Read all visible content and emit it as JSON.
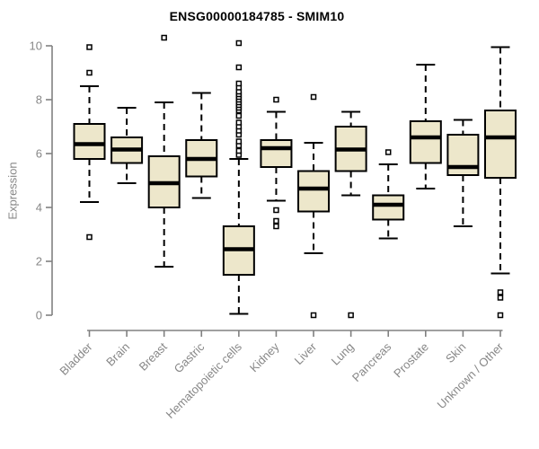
{
  "chart_data": {
    "type": "boxplot",
    "title": "ENSG00000184785 - SMIM10",
    "ylabel": "Expression",
    "xlabel": "",
    "ylim": [
      0,
      10
    ],
    "yticks": [
      0,
      2,
      4,
      6,
      8,
      10
    ],
    "grid": false,
    "legend": "none",
    "categories": [
      "Bladder",
      "Brain",
      "Breast",
      "Gastric",
      "Hematopoietic cells",
      "Kidney",
      "Liver",
      "Lung",
      "Pancreas",
      "Prostate",
      "Skin",
      "Unknown / Other"
    ],
    "series": [
      {
        "name": "Bladder",
        "whislo": 4.2,
        "q1": 5.8,
        "med": 6.35,
        "q3": 7.1,
        "whishi": 8.5,
        "fliers": [
          2.9,
          9.0,
          9.95
        ]
      },
      {
        "name": "Brain",
        "whislo": 4.9,
        "q1": 5.65,
        "med": 6.15,
        "q3": 6.6,
        "whishi": 7.7,
        "fliers": []
      },
      {
        "name": "Breast",
        "whislo": 1.8,
        "q1": 4.0,
        "med": 4.9,
        "q3": 5.9,
        "whishi": 7.9,
        "fliers": [
          10.3
        ]
      },
      {
        "name": "Gastric",
        "whislo": 4.35,
        "q1": 5.15,
        "med": 5.8,
        "q3": 6.5,
        "whishi": 8.25,
        "fliers": []
      },
      {
        "name": "Hematopoietic cells",
        "whislo": 0.05,
        "q1": 1.5,
        "med": 2.45,
        "q3": 3.3,
        "whishi": 5.8,
        "fliers": [
          5.95,
          6.1,
          6.3,
          6.45,
          6.7,
          6.85,
          7.0,
          7.15,
          7.4,
          7.6,
          7.7,
          7.8,
          7.9,
          8.0,
          8.1,
          8.2,
          8.3,
          8.45,
          8.6,
          9.2,
          10.1
        ]
      },
      {
        "name": "Kidney",
        "whislo": 4.25,
        "q1": 5.5,
        "med": 6.2,
        "q3": 6.5,
        "whishi": 7.55,
        "fliers": [
          3.3,
          3.5,
          3.9,
          8.0
        ]
      },
      {
        "name": "Liver",
        "whislo": 2.3,
        "q1": 3.85,
        "med": 4.7,
        "q3": 5.35,
        "whishi": 6.4,
        "fliers": [
          0.0,
          8.1
        ]
      },
      {
        "name": "Lung",
        "whislo": 4.45,
        "q1": 5.35,
        "med": 6.15,
        "q3": 7.0,
        "whishi": 7.55,
        "fliers": [
          0.0
        ]
      },
      {
        "name": "Pancreas",
        "whislo": 2.85,
        "q1": 3.55,
        "med": 4.1,
        "q3": 4.45,
        "whishi": 5.6,
        "fliers": [
          6.05
        ]
      },
      {
        "name": "Prostate",
        "whislo": 4.7,
        "q1": 5.65,
        "med": 6.6,
        "q3": 7.2,
        "whishi": 9.3,
        "fliers": []
      },
      {
        "name": "Skin",
        "whislo": 3.3,
        "q1": 5.2,
        "med": 5.5,
        "q3": 6.7,
        "whishi": 7.25,
        "fliers": []
      },
      {
        "name": "Unknown / Other",
        "whislo": 1.55,
        "q1": 5.1,
        "med": 6.6,
        "q3": 7.6,
        "whishi": 9.95,
        "fliers": [
          0.0,
          0.65,
          0.85
        ]
      }
    ],
    "colors": {
      "box_fill": "#EDE7CB",
      "box_border": "#000000",
      "median": "#000000",
      "axis": "#808080",
      "tick_label": "#878787",
      "title": "#000000",
      "background": "#ffffff"
    }
  }
}
